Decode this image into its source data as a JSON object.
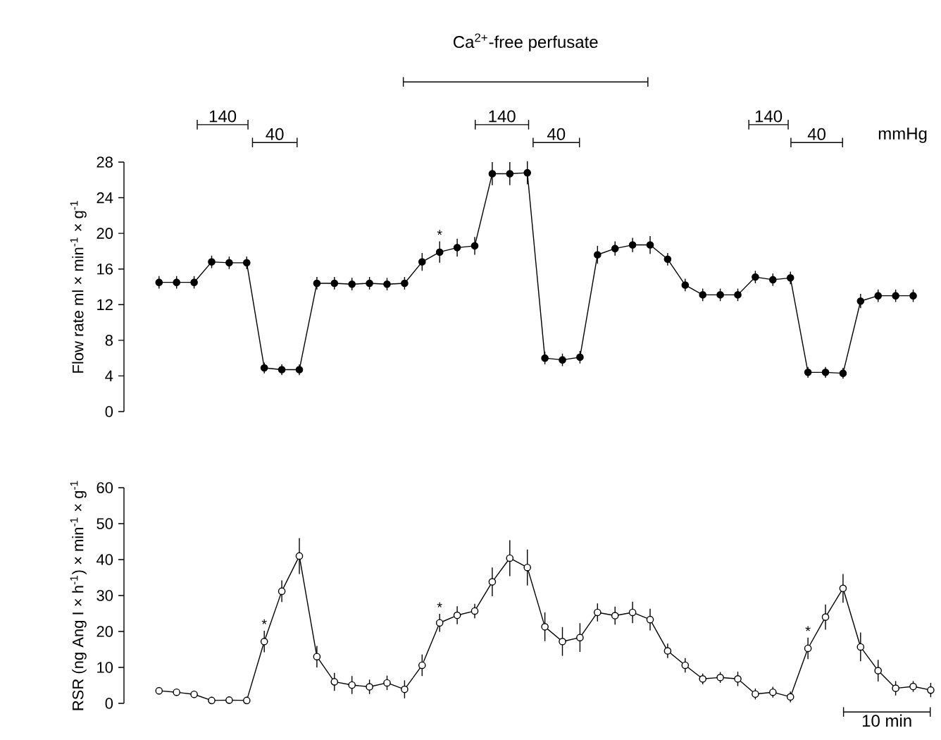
{
  "chart_data": [
    {
      "type": "line",
      "ylabel": "Flow rate ml × min$^{-1}$ × g$^{-1}$",
      "ylim": [
        0,
        28
      ],
      "yticks": [
        0,
        4,
        8,
        12,
        16,
        20,
        24,
        28
      ],
      "marker": "circle",
      "line_style": "solid",
      "annotations": [
        "Ca$^{2+}$-free perfusate",
        "140",
        "40",
        "140",
        "40",
        "140",
        "40",
        "mmHg"
      ],
      "categories": [
        null,
        null,
        null,
        null,
        null,
        null,
        null,
        null,
        null,
        null,
        null,
        null,
        null,
        null,
        null,
        null,
        null,
        null,
        null,
        null,
        null,
        null,
        null,
        null,
        null,
        null,
        null,
        null,
        null,
        null,
        null,
        null,
        null,
        null,
        null,
        null,
        null,
        null,
        null,
        null,
        null,
        null,
        null,
        null
      ],
      "series": [
        {
          "color": "#000000",
          "values": [
            14.5,
            14.5,
            14.5,
            16.8,
            16.7,
            16.7,
            4.9,
            4.7,
            4.7,
            14.4,
            14.4,
            14.3,
            14.4,
            14.3,
            14.4,
            16.8,
            17.9,
            18.4,
            18.6,
            26.7,
            26.7,
            26.8,
            6.0,
            5.8,
            6.1,
            17.6,
            18.3,
            18.7,
            18.7,
            17.1,
            14.2,
            13.1,
            13.1,
            13.1,
            15.1,
            14.8,
            15.0,
            4.4,
            4.4,
            4.3,
            12.4,
            13.0,
            13.0,
            13.0
          ],
          "errors": [
            0.7,
            0.7,
            0.7,
            0.7,
            0.7,
            0.7,
            0.6,
            0.6,
            0.6,
            0.7,
            0.7,
            0.7,
            0.7,
            0.7,
            0.7,
            1.0,
            1.2,
            1.0,
            1.0,
            1.3,
            1.3,
            1.3,
            0.7,
            0.7,
            0.7,
            1.0,
            0.8,
            0.8,
            1.0,
            0.7,
            0.7,
            0.7,
            0.7,
            0.7,
            0.7,
            0.7,
            0.7,
            0.6,
            0.6,
            0.6,
            0.8,
            0.7,
            0.7,
            0.7
          ],
          "value_labels": [
            null,
            null,
            null,
            null,
            null,
            null,
            null,
            null,
            null,
            null,
            null,
            null,
            null,
            null,
            null,
            null,
            "*",
            null,
            null,
            null,
            null,
            null,
            null,
            null,
            null,
            null,
            null,
            null,
            null,
            null,
            null,
            null,
            null,
            null,
            null,
            null,
            null,
            null,
            null,
            null,
            null,
            null,
            null,
            null
          ]
        }
      ]
    },
    {
      "type": "line",
      "ylabel": "RSR (ng Ang I × h$^{-1}$) × min$^{-1}$ × g$^{-1}$",
      "ylim": [
        0,
        60
      ],
      "yticks": [
        0,
        10,
        20,
        30,
        40,
        50,
        60
      ],
      "marker": "circle",
      "line_style": "solid",
      "annotations": [
        "10 min"
      ],
      "categories": [
        null,
        null,
        null,
        null,
        null,
        null,
        null,
        null,
        null,
        null,
        null,
        null,
        null,
        null,
        null,
        null,
        null,
        null,
        null,
        null,
        null,
        null,
        null,
        null,
        null,
        null,
        null,
        null,
        null,
        null,
        null,
        null,
        null,
        null,
        null,
        null,
        null,
        null,
        null,
        null,
        null,
        null,
        null,
        null,
        null
      ],
      "series": [
        {
          "color": "#000000",
          "values": [
            3.5,
            3.1,
            2.5,
            0.8,
            0.9,
            0.8,
            17.2,
            31.2,
            41.0,
            13.0,
            6.0,
            5.1,
            4.6,
            5.7,
            3.9,
            10.6,
            22.4,
            24.5,
            25.7,
            33.8,
            40.4,
            37.8,
            21.3,
            17.2,
            18.3,
            25.3,
            24.4,
            25.3,
            23.3,
            14.6,
            10.6,
            6.8,
            7.2,
            6.8,
            2.6,
            3.1,
            1.8,
            15.3,
            24.0,
            32.0,
            15.7,
            9.1,
            4.2,
            4.7,
            3.7
          ],
          "errors": [
            1,
            1,
            1,
            1,
            1,
            1,
            3,
            3,
            5,
            3,
            2.5,
            2.5,
            2,
            2,
            2.5,
            3,
            2.5,
            2.5,
            2,
            4,
            5,
            5,
            4,
            4,
            4,
            2.5,
            2.5,
            3,
            3,
            2,
            2,
            1.5,
            1.5,
            2,
            1.5,
            1.5,
            1.5,
            3,
            3.5,
            4,
            4,
            3,
            2,
            1.5,
            2
          ],
          "value_labels": [
            null,
            null,
            null,
            null,
            null,
            null,
            "*",
            null,
            null,
            null,
            null,
            null,
            null,
            null,
            null,
            null,
            "*",
            null,
            null,
            null,
            null,
            null,
            null,
            null,
            null,
            null,
            null,
            null,
            null,
            null,
            null,
            null,
            null,
            null,
            null,
            null,
            null,
            "*",
            null,
            null,
            null,
            null,
            null,
            null,
            null
          ]
        }
      ]
    }
  ]
}
